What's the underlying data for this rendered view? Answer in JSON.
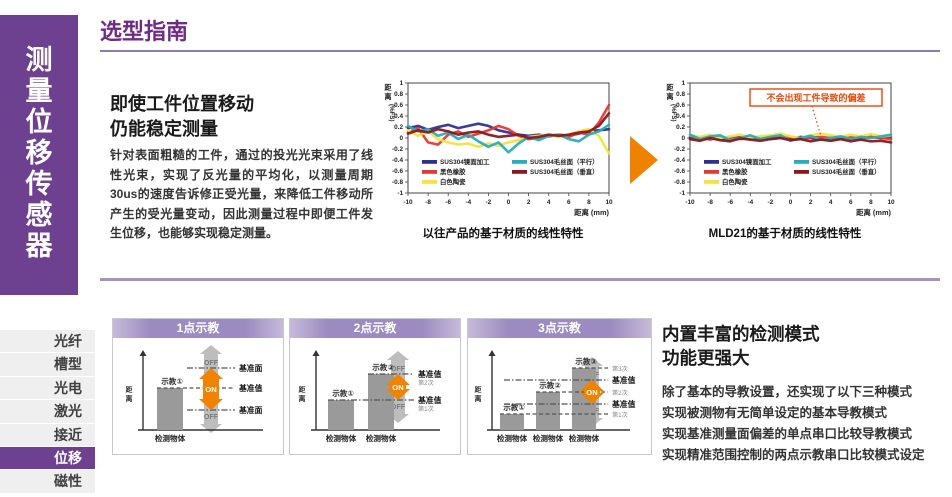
{
  "sidebar": {
    "vertical_title": "测量位移传感器",
    "menu": [
      {
        "label": "光纤",
        "active": false
      },
      {
        "label": "槽型",
        "active": false
      },
      {
        "label": "光电",
        "active": false
      },
      {
        "label": "激光",
        "active": false
      },
      {
        "label": "接近",
        "active": false
      },
      {
        "label": "位移",
        "active": true
      },
      {
        "label": "磁性",
        "active": false
      }
    ]
  },
  "header": {
    "title": "选型指南"
  },
  "section1": {
    "heading_line1": "即使工件位置移动",
    "heading_line2": "仍能稳定测量",
    "body": "针对表面粗糙的工件，通过的投光光束采用了线性光束，实现了反光量的平均化，以测量周期30us的速度告诉修正受光量，来降低工件移动所产生的受光量变动，因此测量过程中即便工件发生位移，也能够实现稳定测量。"
  },
  "chart_data": [
    {
      "type": "line",
      "title": "以往产品的基于材质的线性特性",
      "xlabel": "距离 (mm)",
      "ylabel_chars": "距离",
      "ylabel_unit": "(%FS)",
      "xlim": [
        -10,
        10
      ],
      "ylim": [
        -1,
        1
      ],
      "xticks": [
        -10,
        -8,
        -6,
        -4,
        -2,
        0,
        2,
        4,
        6,
        8,
        10
      ],
      "yticks": [
        1,
        0.8,
        0.6,
        0.4,
        0.2,
        0,
        -0.2,
        -0.4,
        -0.6,
        -0.8,
        -1
      ],
      "x": [
        -10,
        -9,
        -8,
        -7,
        -6,
        -5,
        -4,
        -3,
        -2,
        -1,
        0,
        1,
        2,
        3,
        4,
        5,
        6,
        7,
        8,
        9,
        10
      ],
      "grid": false,
      "legend_position": "inside-bottom",
      "series": [
        {
          "name": "SUS304镜面加工",
          "color": "#2e3192",
          "values": [
            0.18,
            0.22,
            0.15,
            0.2,
            0.24,
            0.18,
            0.22,
            0.26,
            0.22,
            0.14,
            0.1,
            0.06,
            0.04,
            0.06,
            0.03,
            0.06,
            0.04,
            0.08,
            0.12,
            0.14,
            0.16
          ]
        },
        {
          "name": "黑色橡胶",
          "color": "#e8382f",
          "values": [
            0.1,
            0.18,
            -0.08,
            -0.12,
            0.06,
            0.12,
            0.02,
            0.08,
            0.14,
            0.22,
            0.16,
            0.04,
            -0.02,
            0.0,
            0.04,
            0.06,
            0.02,
            0.1,
            0.06,
            0.28,
            0.6
          ]
        },
        {
          "name": "白色陶瓷",
          "color": "#f5e33d",
          "values": [
            0.14,
            0.04,
            0.12,
            -0.02,
            -0.08,
            -0.12,
            -0.1,
            -0.16,
            -0.1,
            -0.14,
            -0.08,
            -0.04,
            0.02,
            0.04,
            0.06,
            0.02,
            0.06,
            0.12,
            0.16,
            0.04,
            -0.28
          ]
        },
        {
          "name": "SUS304毛丝面（平行）",
          "color": "#27aebb",
          "values": [
            0.22,
            0.12,
            0.16,
            0.04,
            0.1,
            -0.02,
            0.06,
            -0.06,
            -0.16,
            -0.08,
            -0.26,
            -0.1,
            0.02,
            -0.04,
            0.04,
            0.06,
            -0.02,
            -0.06,
            0.06,
            0.12,
            0.24
          ]
        },
        {
          "name": "SUS304毛丝面（垂直）",
          "color": "#8c181e",
          "values": [
            0.08,
            0.14,
            0.1,
            0.16,
            0.12,
            0.06,
            0.1,
            0.12,
            0.06,
            0.02,
            0.04,
            0.06,
            0.0,
            0.02,
            0.06,
            0.04,
            0.06,
            0.1,
            0.12,
            0.22,
            0.45
          ]
        }
      ]
    },
    {
      "type": "line",
      "title": "MLD21的基于材质的线性特性",
      "xlabel": "距离 (mm)",
      "ylabel_chars": "距离",
      "ylabel_unit": "(%FS)",
      "xlim": [
        -10,
        10
      ],
      "ylim": [
        -1,
        1
      ],
      "xticks": [
        -10,
        -8,
        -6,
        -4,
        -2,
        0,
        2,
        4,
        6,
        8,
        10
      ],
      "yticks": [
        1,
        0.8,
        0.6,
        0.4,
        0.2,
        0,
        -0.2,
        -0.4,
        -0.6,
        -0.8,
        -1
      ],
      "x": [
        -10,
        -9,
        -8,
        -7,
        -6,
        -5,
        -4,
        -3,
        -2,
        -1,
        0,
        1,
        2,
        3,
        4,
        5,
        6,
        7,
        8,
        9,
        10
      ],
      "grid": false,
      "legend_position": "inside-bottom",
      "annotation": {
        "text": "不会出现工件导致的偏差",
        "color": "#e94709",
        "points_to_x": 3,
        "points_to_y": 0.05
      },
      "series": [
        {
          "name": "SUS304镜面加工",
          "color": "#2e3192",
          "values": [
            0.02,
            0.0,
            0.03,
            -0.02,
            0.0,
            0.02,
            -0.03,
            0.0,
            0.03,
            0.0,
            -0.02,
            0.02,
            0.0,
            -0.03,
            0.0,
            0.02,
            -0.02,
            0.0,
            0.02,
            0.0,
            0.02
          ]
        },
        {
          "name": "黑色橡胶",
          "color": "#e8382f",
          "values": [
            -0.02,
            0.01,
            -0.03,
            0.02,
            0.0,
            -0.02,
            0.01,
            0.02,
            -0.02,
            0.0,
            0.02,
            -0.02,
            0.01,
            0.02,
            0.0,
            -0.02,
            0.02,
            -0.01,
            0.02,
            0.0,
            -0.02
          ]
        },
        {
          "name": "白色陶瓷",
          "color": "#f5e33d",
          "values": [
            0.05,
            0.02,
            0.06,
            0.0,
            0.03,
            0.06,
            0.01,
            0.03,
            0.05,
            0.08,
            0.03,
            0.0,
            0.05,
            0.08,
            0.05,
            0.02,
            0.06,
            0.03,
            0.07,
            0.03,
            0.05
          ]
        },
        {
          "name": "SUS304毛丝面（平行）",
          "color": "#27aebb",
          "values": [
            0.06,
            -0.02,
            0.03,
            0.05,
            -0.04,
            0.0,
            0.05,
            -0.02,
            0.02,
            0.05,
            -0.05,
            0.0,
            0.04,
            -0.03,
            0.0,
            0.03,
            -0.02,
            0.02,
            0.0,
            0.03,
            0.06
          ]
        },
        {
          "name": "SUS304毛丝面（垂直）",
          "color": "#8c181e",
          "values": [
            -0.02,
            -0.05,
            0.0,
            -0.04,
            -0.06,
            -0.01,
            -0.03,
            -0.05,
            -0.02,
            0.0,
            -0.04,
            -0.02,
            -0.06,
            -0.03,
            -0.05,
            -0.02,
            -0.06,
            -0.03,
            -0.06,
            -0.05,
            -0.08
          ]
        }
      ]
    }
  ],
  "section2": {
    "heading_line1": "内置丰富的检测模式",
    "heading_line2": "功能更强大",
    "lines": [
      "除了基本的导教设置，还实现了以下三种模式",
      "实现被测物有无简单设定的基本导教模式",
      "实现基准测量面偏差的单点串口比较导教模式",
      "实现精准范围控制的两点示教串口比较模式设定"
    ],
    "panels": [
      {
        "title": "1点示教",
        "axis_label": "距离",
        "bars": [
          "示教①"
        ],
        "objects": [
          "检测物体"
        ],
        "ref_labels": [
          {
            "label": "基准面",
            "sub": ""
          },
          {
            "label": "基准值",
            "sub": ""
          },
          {
            "label": "基准面",
            "sub": ""
          }
        ],
        "arrow_labels": {
          "top": "OFF",
          "mid": "ON",
          "bottom": "OFF"
        }
      },
      {
        "title": "2点示教",
        "axis_label": "距离",
        "bars": [
          "示教①",
          "示教②"
        ],
        "objects": [
          "检测物体",
          "检测物体"
        ],
        "ref_labels": [
          {
            "label": "基准值",
            "sub": "第2次"
          },
          {
            "label": "基准值",
            "sub": "第1次"
          }
        ],
        "arrow_labels": {
          "top": "OFF",
          "mid": "ON",
          "bottom": "OFF"
        }
      },
      {
        "title": "3点示教",
        "axis_label": "距离",
        "bars": [
          "示教①",
          "示教②",
          "示教③"
        ],
        "objects": [
          "检测物体",
          "检测物体",
          "检测物体"
        ],
        "ref_labels": [
          {
            "label": "",
            "sub": "第3次"
          },
          {
            "label": "基准值",
            "sub": ""
          },
          {
            "label": "",
            "sub": "第2次"
          },
          {
            "label": "基准值",
            "sub": ""
          },
          {
            "label": "",
            "sub": "第1次"
          }
        ],
        "arrow_labels": {
          "top": "OFF",
          "mid": "ON",
          "bottom": "OFF"
        }
      }
    ]
  },
  "colors": {
    "brand_purple": "#6e4090",
    "title_purple": "#6f2b85",
    "panel_header_purple": "#9c8bc0",
    "accent_orange": "#ef8200",
    "callout_orange": "#e94709",
    "bar_gray": "#9a9a9a",
    "off_gray": "#bdbdbd"
  }
}
